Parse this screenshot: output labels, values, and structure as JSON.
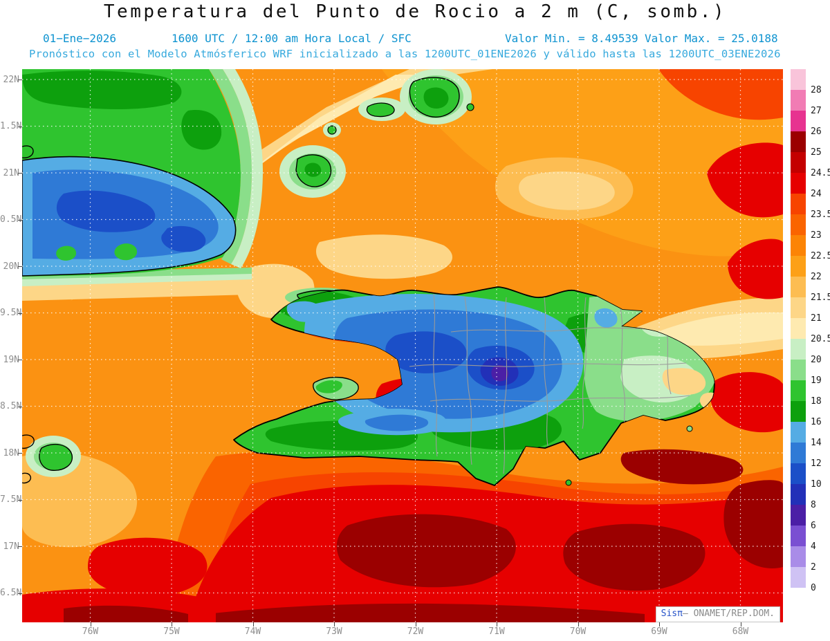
{
  "title": "Temperatura del Punto de Rocio a 2 m (C, somb.)",
  "subtitle": {
    "date": "01−Ene−2026",
    "time": "1600 UTC / 12:00 am Hora Local / SFC",
    "min": "Valor Min. = 8.49539",
    "max": "Valor Max. = 25.0188",
    "model_line": "Pronóstico con el Modelo Atmósferico WRF inicializado a las 1200UTC_01ENE2026 y válido hasta las  1200UTC_03ENE2026"
  },
  "axes": {
    "lat_labels": [
      "22N",
      "1.5N",
      "21N",
      "0.5N",
      "20N",
      "9.5N",
      "19N",
      "8.5N",
      "18N",
      "7.5N",
      "17N",
      "6.5N"
    ],
    "lon_labels": [
      "76W",
      "75W",
      "74W",
      "73W",
      "72W",
      "71W",
      "70W",
      "69W",
      "68W"
    ]
  },
  "colorbar": {
    "labels": [
      "28",
      "27",
      "26",
      "25",
      "24.5",
      "24",
      "23.5",
      "23",
      "22.5",
      "22",
      "21.5",
      "21",
      "20.5",
      "20",
      "19",
      "18",
      "16",
      "14",
      "12",
      "10",
      "8",
      "6",
      "4",
      "2",
      "0"
    ],
    "colors": [
      "#f9c4da",
      "#f17cb4",
      "#e73390",
      "#9b0000",
      "#c40000",
      "#e60000",
      "#f74400",
      "#fa6400",
      "#fc8405",
      "#fda017",
      "#fdbd52",
      "#fdd687",
      "#feeab0",
      "#c8efc4",
      "#8ade8a",
      "#2fc42f",
      "#0da00d",
      "#55ace4",
      "#2f7ad6",
      "#1b4fc8",
      "#2230b8",
      "#4b1fa6",
      "#7a4fd2",
      "#a98ce8",
      "#cfc2f4",
      "#ffffff"
    ]
  },
  "watermark": {
    "brand": "Sisπ",
    "rest": "– ONAMET/REP.DOM."
  },
  "colors": {
    "subtitle_blue": "#0e93d0",
    "model_blue": "#36a9dd",
    "watermark_blue": "#2451c8",
    "axis_gray": "#8e8e8e"
  },
  "chart_data": {
    "type": "heatmap",
    "title": "Temperatura del Punto de Rocio a 2 m (C, somb.)",
    "variable": "dew_point_temperature_2m_C",
    "valid_time": "01−Ene−2026 1600 UTC / 12:00 am Hora Local / SFC",
    "value_min": 8.49539,
    "value_max": 25.0188,
    "lat_range": [
      16.5,
      22.1
    ],
    "lon_range": [
      -76.8,
      -67.5
    ],
    "contour_levels": [
      0,
      2,
      4,
      6,
      8,
      10,
      12,
      14,
      16,
      18,
      19,
      20,
      20.5,
      21,
      21.5,
      22,
      22.5,
      23,
      23.5,
      24,
      24.5,
      25,
      26,
      27,
      28
    ],
    "legend_position": "right",
    "grid": true,
    "notes": "WRF model dew point forecast over Hispaniola/Cuba region; warm (orange/red) over ocean, cool (green/blue) over island interiors"
  }
}
